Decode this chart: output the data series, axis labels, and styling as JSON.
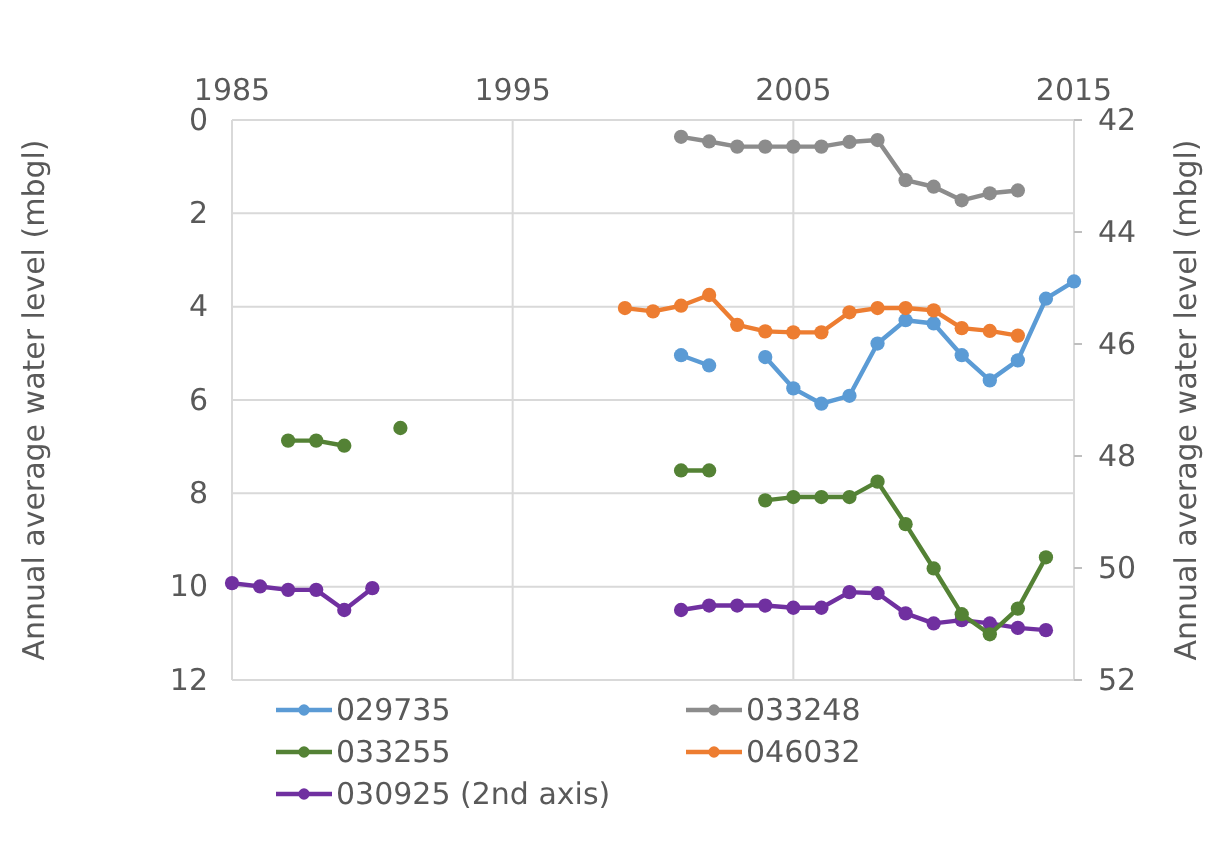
{
  "chart_data": {
    "type": "line",
    "ylabel": "Annual average water level (mbgl)",
    "y2label": "Annual average water level (mbgl)",
    "xlim": [
      1985,
      2015
    ],
    "xticks": [
      1985,
      1995,
      2005,
      2015
    ],
    "ylim": [
      12,
      0
    ],
    "yticks": [
      0,
      2,
      4,
      6,
      8,
      10,
      12
    ],
    "y2lim": [
      52,
      42
    ],
    "y2ticks": [
      42,
      44,
      46,
      48,
      50,
      52
    ],
    "grid": true,
    "legend": "bottom",
    "marker": "circle",
    "line_style": "solid",
    "series": [
      {
        "name": "029735",
        "color": "#5b9bd5",
        "x": [
          2001,
          2002,
          2003,
          2004,
          2005,
          2006,
          2007,
          2008,
          2009,
          2010,
          2011,
          2012,
          2013,
          2014,
          2015
        ],
        "values": [
          5.04,
          5.26,
          null,
          5.08,
          5.75,
          6.08,
          5.91,
          4.79,
          4.29,
          4.36,
          5.04,
          5.58,
          5.15,
          3.83,
          3.46
        ]
      },
      {
        "name": "033248",
        "color": "#8c8c8c",
        "x": [
          2001,
          2002,
          2003,
          2004,
          2005,
          2006,
          2007,
          2008,
          2009,
          2010,
          2011,
          2012,
          2013
        ],
        "values": [
          0.36,
          0.46,
          0.57,
          0.57,
          0.57,
          0.57,
          0.47,
          0.43,
          1.29,
          1.43,
          1.72,
          1.57,
          1.51
        ]
      },
      {
        "name": "033255",
        "color": "#548235",
        "x": [
          1987,
          1988,
          1989,
          1990,
          1991,
          1992,
          2001,
          2002,
          2003,
          2004,
          2005,
          2006,
          2007,
          2008,
          2009,
          2010,
          2011,
          2012,
          2013,
          2014
        ],
        "values": [
          6.87,
          6.87,
          6.98,
          null,
          6.6,
          null,
          7.51,
          7.51,
          null,
          8.15,
          8.08,
          8.08,
          8.08,
          7.75,
          8.66,
          9.61,
          10.59,
          11.02,
          10.47,
          9.37
        ]
      },
      {
        "name": "046032",
        "color": "#ed7d31",
        "x": [
          1999,
          2000,
          2001,
          2002,
          2003,
          2004,
          2005,
          2006,
          2007,
          2008,
          2009,
          2010,
          2011,
          2012,
          2013
        ],
        "values": [
          4.03,
          4.1,
          3.98,
          3.75,
          4.39,
          4.53,
          4.55,
          4.55,
          4.12,
          4.03,
          4.03,
          4.08,
          4.46,
          4.52,
          4.62
        ]
      },
      {
        "name": "030925 (2nd axis)",
        "color": "#7030a0",
        "axis": "y2",
        "x": [
          1985,
          1986,
          1987,
          1988,
          1989,
          1990,
          1991,
          2001,
          2002,
          2003,
          2004,
          2005,
          2006,
          2007,
          2008,
          2009,
          2010,
          2011,
          2012,
          2013,
          2014
        ],
        "values": [
          50.27,
          50.33,
          50.39,
          50.39,
          50.75,
          50.36,
          null,
          50.75,
          50.67,
          50.67,
          50.67,
          50.71,
          50.71,
          50.43,
          50.45,
          50.81,
          50.99,
          50.93,
          50.99,
          51.07,
          51.11
        ]
      }
    ]
  }
}
